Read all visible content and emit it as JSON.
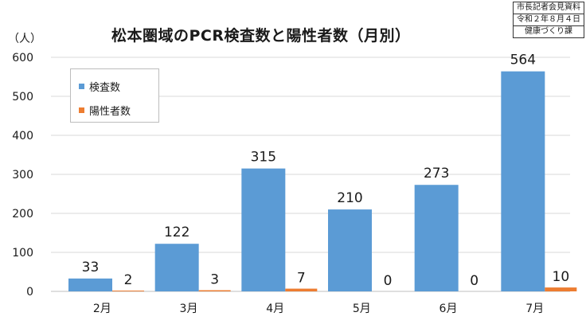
{
  "header": {
    "title": "松本圏域のPCR検査数と陽性者数（月別）",
    "unit": "（人）"
  },
  "stamp": [
    "市長記者会見資料",
    "令和２年８月４日",
    "健康づくり課"
  ],
  "colors": {
    "series1": "#5b9bd5",
    "series2": "#ed7d31",
    "grid": "#d9d9d9",
    "axis": "#bfbfbf"
  },
  "chart_data": {
    "type": "bar",
    "categories": [
      "2月",
      "3月",
      "4月",
      "5月",
      "6月",
      "7月"
    ],
    "series": [
      {
        "name": "検査数",
        "values": [
          33,
          122,
          315,
          210,
          273,
          564
        ]
      },
      {
        "name": "陽性者数",
        "values": [
          2,
          3,
          7,
          0,
          0,
          10
        ]
      }
    ],
    "ylim": [
      0,
      600
    ],
    "yticks": [
      0,
      100,
      200,
      300,
      400,
      500,
      600
    ],
    "grid": true,
    "legend_position": "top-left"
  }
}
